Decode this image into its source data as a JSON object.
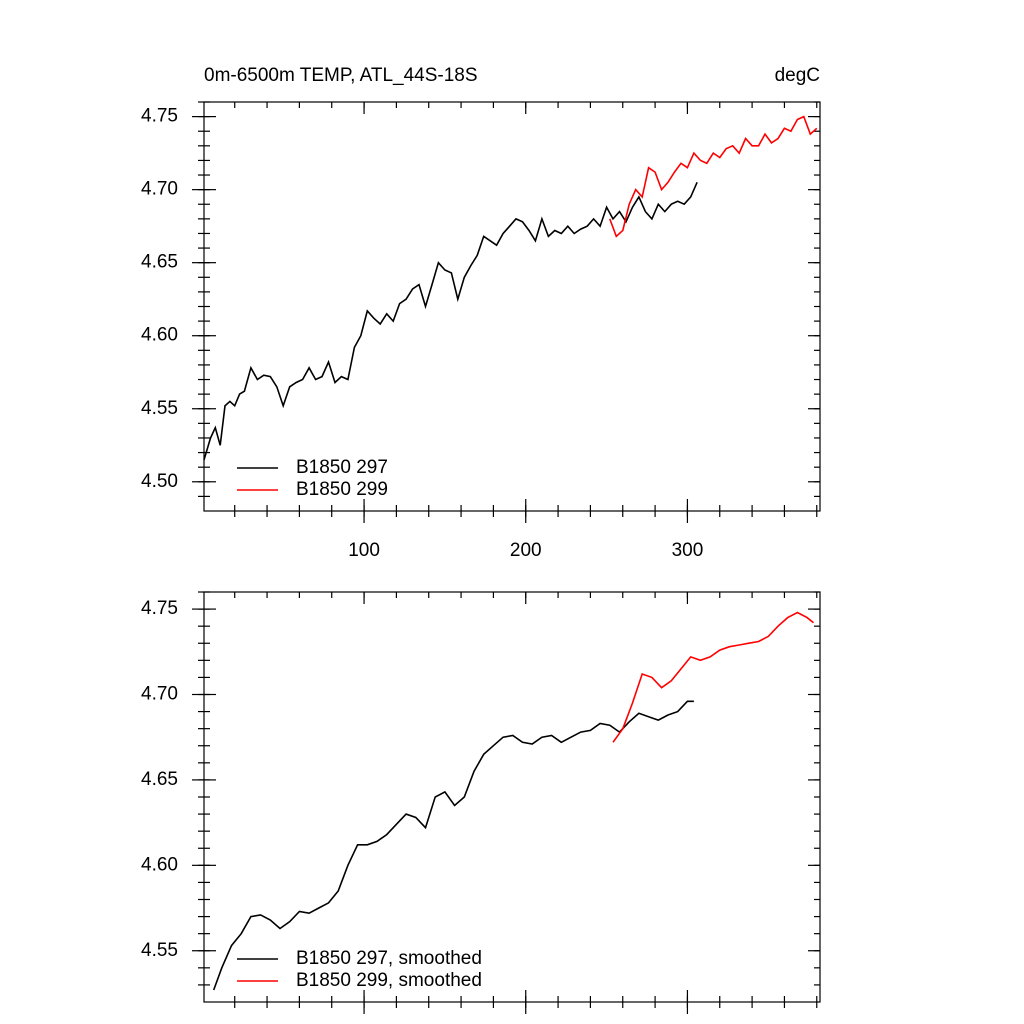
{
  "chart_data": [
    {
      "type": "line",
      "title": "0m-6500m TEMP, ATL_44S-18S",
      "units": "degC",
      "xlim": [
        1,
        382
      ],
      "ylim": [
        4.48,
        4.76
      ],
      "xticks": [
        100,
        200,
        300
      ],
      "yticks": [
        {
          "value": 4.5,
          "label": "4.50"
        },
        4.55,
        {
          "value": 4.6,
          "label": "4.60"
        },
        4.65,
        {
          "value": 4.7,
          "label": "4.70"
        },
        4.75
      ],
      "series": [
        {
          "name": "B1850 297",
          "color": "#000000",
          "x": [
            1,
            5,
            8,
            11,
            14,
            17,
            20,
            23,
            26,
            30,
            34,
            38,
            42,
            46,
            50,
            54,
            58,
            62,
            66,
            70,
            74,
            78,
            82,
            86,
            90,
            94,
            98,
            102,
            106,
            110,
            114,
            118,
            122,
            126,
            130,
            134,
            138,
            142,
            146,
            150,
            154,
            158,
            162,
            166,
            170,
            174,
            178,
            182,
            186,
            190,
            194,
            198,
            202,
            206,
            210,
            214,
            218,
            222,
            226,
            230,
            234,
            238,
            242,
            246,
            250,
            254,
            258,
            262,
            266,
            270,
            274,
            278,
            282,
            286,
            290,
            294,
            298,
            302,
            306
          ],
          "values": [
            4.515,
            4.53,
            4.537,
            4.525,
            4.552,
            4.555,
            4.552,
            4.56,
            4.562,
            4.578,
            4.57,
            4.573,
            4.572,
            4.565,
            4.552,
            4.565,
            4.568,
            4.57,
            4.578,
            4.57,
            4.572,
            4.582,
            4.568,
            4.572,
            4.57,
            4.592,
            4.6,
            4.617,
            4.612,
            4.608,
            4.615,
            4.61,
            4.622,
            4.625,
            4.632,
            4.635,
            4.62,
            4.635,
            4.65,
            4.645,
            4.643,
            4.625,
            4.64,
            4.648,
            4.655,
            4.668,
            4.665,
            4.662,
            4.67,
            4.675,
            4.68,
            4.678,
            4.672,
            4.665,
            4.68,
            4.668,
            4.672,
            4.67,
            4.675,
            4.67,
            4.673,
            4.675,
            4.68,
            4.675,
            4.688,
            4.68,
            4.685,
            4.678,
            4.688,
            4.695,
            4.685,
            4.68,
            4.69,
            4.685,
            4.69,
            4.692,
            4.69,
            4.695,
            4.705
          ]
        },
        {
          "name": "B1850 299",
          "color": "#ff0000",
          "x": [
            252,
            256,
            260,
            264,
            268,
            272,
            276,
            280,
            284,
            288,
            292,
            296,
            300,
            304,
            308,
            312,
            316,
            320,
            324,
            328,
            332,
            336,
            340,
            344,
            348,
            352,
            356,
            360,
            364,
            368,
            372,
            376,
            380
          ],
          "values": [
            4.68,
            4.668,
            4.672,
            4.69,
            4.7,
            4.695,
            4.715,
            4.712,
            4.7,
            4.705,
            4.712,
            4.718,
            4.715,
            4.725,
            4.72,
            4.718,
            4.725,
            4.722,
            4.728,
            4.73,
            4.725,
            4.735,
            4.73,
            4.73,
            4.738,
            4.732,
            4.735,
            4.742,
            4.74,
            4.748,
            4.75,
            4.738,
            4.742
          ]
        }
      ]
    },
    {
      "type": "line",
      "xlim": [
        1,
        382
      ],
      "ylim": [
        4.52,
        4.76
      ],
      "yticks": [
        4.55,
        {
          "value": 4.6,
          "label": "4.60"
        },
        4.65,
        {
          "value": 4.7,
          "label": "4.70"
        },
        4.75
      ],
      "series": [
        {
          "name": "B1850 297, smoothed",
          "color": "#000000",
          "x": [
            7,
            12,
            18,
            24,
            30,
            36,
            42,
            48,
            54,
            60,
            66,
            72,
            78,
            84,
            90,
            96,
            102,
            108,
            114,
            120,
            126,
            132,
            138,
            144,
            150,
            156,
            162,
            168,
            174,
            180,
            186,
            192,
            198,
            204,
            210,
            216,
            222,
            228,
            234,
            240,
            246,
            252,
            258,
            264,
            270,
            276,
            282,
            288,
            294,
            300,
            304
          ],
          "values": [
            4.527,
            4.54,
            4.553,
            4.56,
            4.57,
            4.571,
            4.568,
            4.563,
            4.567,
            4.573,
            4.572,
            4.575,
            4.578,
            4.585,
            4.6,
            4.612,
            4.612,
            4.614,
            4.618,
            4.624,
            4.63,
            4.628,
            4.622,
            4.64,
            4.643,
            4.635,
            4.64,
            4.655,
            4.665,
            4.67,
            4.675,
            4.676,
            4.672,
            4.671,
            4.675,
            4.676,
            4.672,
            4.675,
            4.678,
            4.679,
            4.683,
            4.682,
            4.678,
            4.684,
            4.689,
            4.687,
            4.685,
            4.688,
            4.69,
            4.696,
            4.696
          ]
        },
        {
          "name": "B1850 299, smoothed",
          "color": "#ff0000",
          "x": [
            254,
            260,
            266,
            272,
            278,
            284,
            290,
            296,
            302,
            308,
            314,
            320,
            326,
            332,
            338,
            344,
            350,
            356,
            362,
            368,
            374,
            378
          ],
          "values": [
            4.672,
            4.68,
            4.695,
            4.712,
            4.71,
            4.704,
            4.708,
            4.715,
            4.722,
            4.72,
            4.722,
            4.726,
            4.728,
            4.729,
            4.73,
            4.731,
            4.734,
            4.74,
            4.745,
            4.748,
            4.745,
            4.742
          ]
        }
      ]
    }
  ]
}
